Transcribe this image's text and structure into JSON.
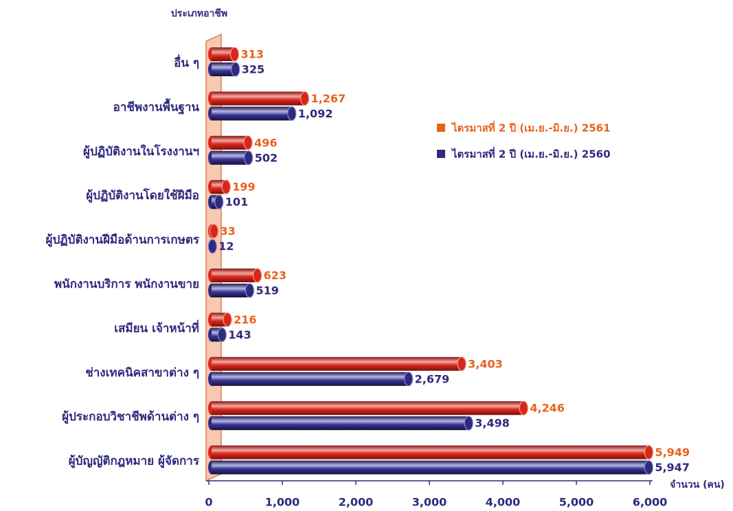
{
  "chart_data": {
    "type": "bar",
    "orientation": "horizontal",
    "y_axis_label": "ประเภทอาชีพ",
    "x_axis_label": "จำนวน (คน)",
    "categories": [
      "อื่น ๆ",
      "อาชีพงานพื้นฐาน",
      "ผู้ปฏิบัติงานในโรงงานฯ",
      "ผู้ปฏิบัติงานโดยใช้ฝีมือ",
      "ผู้ปฏิบัติงานฝีมือด้านการเกษตร",
      "พนักงานบริการ พนักงานขาย",
      "เสมียน เจ้าหน้าที่",
      "ช่างเทคนิคสาขาต่าง ๆ",
      "ผู้ประกอบวิชาชีพด้านต่าง ๆ",
      "ผู้บัญญัติกฎหมาย ผู้จัดการ"
    ],
    "series": [
      {
        "name": "ไตรมาสที่ 2 ปี (เม.ย.-มิ.ย.) 2561",
        "color": "#d9261c",
        "values": [
          313,
          1267,
          496,
          199,
          33,
          623,
          216,
          3403,
          4246,
          5949
        ],
        "value_labels": [
          "313",
          "1,267",
          "496",
          "199",
          "33",
          "623",
          "216",
          "3,403",
          "4,246",
          "5,949"
        ]
      },
      {
        "name": "ไตรมาสที่ 2 ปี (เม.ย.-มิ.ย.) 2560",
        "color": "#2e2a7e",
        "values": [
          325,
          1092,
          502,
          101,
          12,
          519,
          143,
          2679,
          3498,
          5947
        ],
        "value_labels": [
          "325",
          "1,092",
          "502",
          "101",
          "12",
          "519",
          "143",
          "2,679",
          "3,498",
          "5,947"
        ]
      }
    ],
    "xlim": [
      0,
      6000
    ],
    "xticks": [
      0,
      {
        "value": 1000,
        "label": "1,000"
      },
      {
        "value": 2000,
        "label": "2,000"
      },
      {
        "value": 3000,
        "label": "3,000"
      },
      {
        "value": 4000,
        "label": "4,000"
      },
      {
        "value": 5000,
        "label": "5,000"
      },
      {
        "value": 6000,
        "label": "6,000"
      }
    ],
    "legend": "right"
  }
}
